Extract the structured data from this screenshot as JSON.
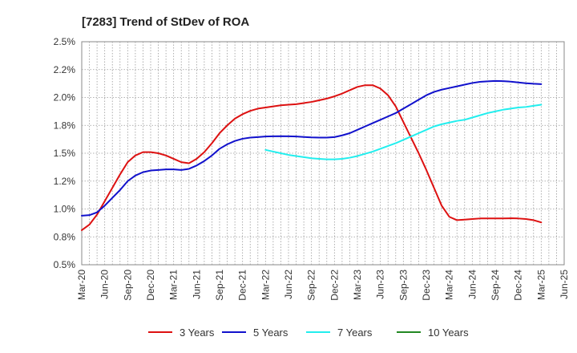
{
  "chart_data": {
    "type": "line",
    "title": "[7283]  Trend of StDev of ROA",
    "xlabel": "",
    "ylabel": "",
    "ylim": [
      0.5,
      2.5
    ],
    "x_tick_labels": [
      "Mar-20",
      "Jun-20",
      "Sep-20",
      "Dec-20",
      "Mar-21",
      "Jun-21",
      "Sep-21",
      "Dec-21",
      "Mar-22",
      "Jun-22",
      "Sep-22",
      "Dec-22",
      "Mar-23",
      "Jun-23",
      "Sep-23",
      "Dec-23",
      "Mar-24",
      "Jun-24",
      "Sep-24",
      "Dec-24",
      "Mar-25",
      "Jun-25"
    ],
    "y_tick_labels": [
      "0.5%",
      "0.8%",
      "1.0%",
      "1.2%",
      "1.5%",
      "1.8%",
      "2.0%",
      "2.2%",
      "2.5%"
    ],
    "y_tick_values": [
      0.5,
      0.75,
      1.0,
      1.25,
      1.5,
      1.75,
      2.0,
      2.25,
      2.5
    ],
    "grid": true,
    "legend_position": "bottom",
    "series": [
      {
        "name": "3 Years",
        "color": "#dd1111",
        "x": [
          "Mar-20",
          "Apr-20",
          "May-20",
          "Jun-20",
          "Jul-20",
          "Aug-20",
          "Sep-20",
          "Oct-20",
          "Nov-20",
          "Dec-20",
          "Jan-21",
          "Feb-21",
          "Mar-21",
          "Apr-21",
          "May-21",
          "Jun-21",
          "Jul-21",
          "Aug-21",
          "Sep-21",
          "Oct-21",
          "Nov-21",
          "Dec-21",
          "Jan-22",
          "Feb-22",
          "Mar-22",
          "Apr-22",
          "May-22",
          "Jun-22",
          "Jul-22",
          "Aug-22",
          "Sep-22",
          "Oct-22",
          "Nov-22",
          "Dec-22",
          "Jan-23",
          "Feb-23",
          "Mar-23",
          "Apr-23",
          "May-23",
          "Jun-23",
          "Jul-23",
          "Aug-23",
          "Sep-23",
          "Oct-23",
          "Nov-23",
          "Dec-23",
          "Jan-24",
          "Feb-24",
          "Mar-24",
          "Apr-24",
          "May-24",
          "Jun-24",
          "Jul-24",
          "Aug-24",
          "Sep-24",
          "Oct-24",
          "Nov-24",
          "Dec-24",
          "Jan-25",
          "Feb-25",
          "Mar-25"
        ],
        "values": [
          0.81,
          0.86,
          0.95,
          1.07,
          1.19,
          1.31,
          1.42,
          1.48,
          1.51,
          1.51,
          1.5,
          1.48,
          1.45,
          1.42,
          1.41,
          1.45,
          1.51,
          1.59,
          1.68,
          1.75,
          1.81,
          1.85,
          1.88,
          1.9,
          1.91,
          1.92,
          1.93,
          1.935,
          1.94,
          1.95,
          1.96,
          1.975,
          1.99,
          2.01,
          2.035,
          2.065,
          2.095,
          2.11,
          2.11,
          2.08,
          2.02,
          1.92,
          1.78,
          1.64,
          1.5,
          1.35,
          1.19,
          1.03,
          0.93,
          0.9,
          0.905,
          0.91,
          0.915,
          0.915,
          0.915,
          0.915,
          0.917,
          0.915,
          0.91,
          0.9,
          0.88
        ],
        "x_index": [
          0,
          1,
          2,
          3,
          4,
          5,
          6,
          7,
          8,
          9,
          10,
          11,
          12,
          13,
          14,
          15,
          16,
          17,
          18,
          19,
          20,
          21,
          22,
          23,
          24,
          25,
          26,
          27,
          28,
          29,
          30,
          31,
          32,
          33,
          34,
          35,
          36,
          37,
          38,
          39,
          40,
          41,
          42,
          43,
          44,
          45,
          46,
          47,
          48,
          49,
          50,
          51,
          52,
          53,
          54,
          55,
          56,
          57,
          58,
          59,
          60
        ]
      },
      {
        "name": "5 Years",
        "color": "#1111cc",
        "x": [
          "Mar-20",
          "Apr-20",
          "May-20",
          "Jun-20",
          "Jul-20",
          "Aug-20",
          "Sep-20",
          "Oct-20",
          "Nov-20",
          "Dec-20",
          "Jan-21",
          "Feb-21",
          "Mar-21",
          "Apr-21",
          "May-21",
          "Jun-21",
          "Jul-21",
          "Aug-21",
          "Sep-21",
          "Oct-21",
          "Nov-21",
          "Dec-21",
          "Jan-22",
          "Feb-22",
          "Mar-22",
          "Apr-22",
          "May-22",
          "Jun-22",
          "Jul-22",
          "Aug-22",
          "Sep-22",
          "Oct-22",
          "Nov-22",
          "Dec-22",
          "Jan-23",
          "Feb-23",
          "Mar-23",
          "Apr-23",
          "May-23",
          "Jun-23",
          "Jul-23",
          "Aug-23",
          "Sep-23",
          "Oct-23",
          "Nov-23",
          "Dec-23",
          "Jan-24",
          "Feb-24",
          "Mar-24",
          "Apr-24",
          "May-24",
          "Jun-24",
          "Jul-24",
          "Aug-24",
          "Sep-24",
          "Oct-24",
          "Nov-24",
          "Dec-24",
          "Jan-25",
          "Feb-25",
          "Mar-25"
        ],
        "values": [
          0.94,
          0.945,
          0.97,
          1.03,
          1.1,
          1.17,
          1.25,
          1.3,
          1.33,
          1.345,
          1.35,
          1.355,
          1.355,
          1.35,
          1.36,
          1.39,
          1.43,
          1.48,
          1.54,
          1.58,
          1.61,
          1.63,
          1.64,
          1.645,
          1.65,
          1.652,
          1.653,
          1.652,
          1.65,
          1.646,
          1.642,
          1.64,
          1.64,
          1.645,
          1.66,
          1.68,
          1.71,
          1.74,
          1.77,
          1.8,
          1.83,
          1.86,
          1.9,
          1.94,
          1.98,
          2.02,
          2.05,
          2.07,
          2.085,
          2.1,
          2.115,
          2.13,
          2.14,
          2.145,
          2.148,
          2.147,
          2.142,
          2.135,
          2.128,
          2.123,
          2.12
        ],
        "x_index": [
          0,
          1,
          2,
          3,
          4,
          5,
          6,
          7,
          8,
          9,
          10,
          11,
          12,
          13,
          14,
          15,
          16,
          17,
          18,
          19,
          20,
          21,
          22,
          23,
          24,
          25,
          26,
          27,
          28,
          29,
          30,
          31,
          32,
          33,
          34,
          35,
          36,
          37,
          38,
          39,
          40,
          41,
          42,
          43,
          44,
          45,
          46,
          47,
          48,
          49,
          50,
          51,
          52,
          53,
          54,
          55,
          56,
          57,
          58,
          59,
          60
        ]
      },
      {
        "name": "7 Years",
        "color": "#22eeee",
        "x": [
          "Mar-22",
          "Apr-22",
          "May-22",
          "Jun-22",
          "Jul-22",
          "Aug-22",
          "Sep-22",
          "Oct-22",
          "Nov-22",
          "Dec-22",
          "Jan-23",
          "Feb-23",
          "Mar-23",
          "Apr-23",
          "May-23",
          "Jun-23",
          "Jul-23",
          "Aug-23",
          "Sep-23",
          "Oct-23",
          "Nov-23",
          "Dec-23",
          "Jan-24",
          "Feb-24",
          "Mar-24",
          "Apr-24",
          "May-24",
          "Jun-24",
          "Jul-24",
          "Aug-24",
          "Sep-24",
          "Oct-24",
          "Nov-24",
          "Dec-24",
          "Jan-25",
          "Feb-25",
          "Mar-25"
        ],
        "values": [
          1.53,
          1.515,
          1.5,
          1.485,
          1.475,
          1.465,
          1.455,
          1.45,
          1.445,
          1.445,
          1.45,
          1.46,
          1.475,
          1.495,
          1.515,
          1.54,
          1.565,
          1.59,
          1.62,
          1.65,
          1.68,
          1.71,
          1.74,
          1.76,
          1.775,
          1.79,
          1.8,
          1.82,
          1.84,
          1.86,
          1.875,
          1.89,
          1.9,
          1.91,
          1.915,
          1.925,
          1.935
        ],
        "x_index": [
          24,
          25,
          26,
          27,
          28,
          29,
          30,
          31,
          32,
          33,
          34,
          35,
          36,
          37,
          38,
          39,
          40,
          41,
          42,
          43,
          44,
          45,
          46,
          47,
          48,
          49,
          50,
          51,
          52,
          53,
          54,
          55,
          56,
          57,
          58,
          59,
          60
        ]
      },
      {
        "name": "10 Years",
        "color": "#228822",
        "x": [],
        "values": [],
        "x_index": []
      }
    ]
  }
}
